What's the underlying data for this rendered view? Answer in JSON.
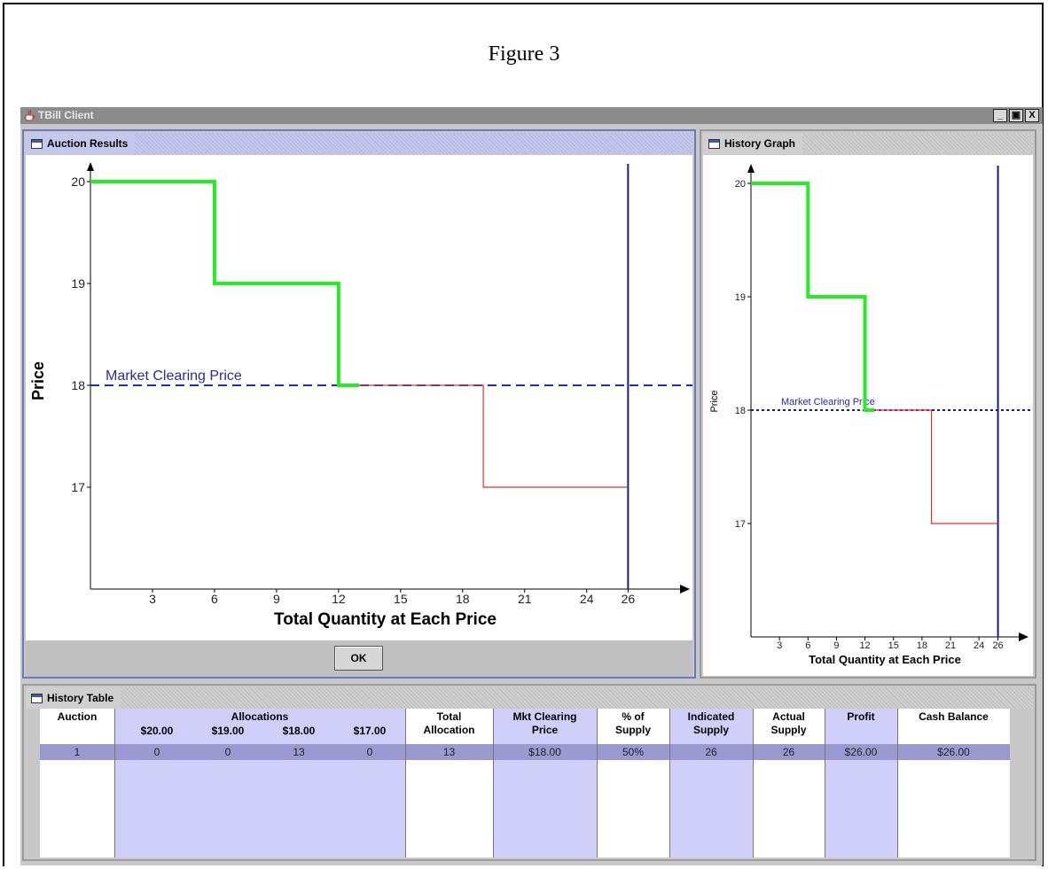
{
  "caption": "Figure 3",
  "app": {
    "title": "TBill Client",
    "buttons": [
      "_",
      "ᴱ",
      "X"
    ],
    "button_icons": [
      "minimize-icon",
      "restore-icon",
      "close-icon"
    ]
  },
  "auction_results": {
    "title": "Auction Results",
    "ok_label": "OK",
    "chart_data": {
      "type": "line",
      "xlabel": "Total Quantity at Each Price",
      "ylabel": "Price",
      "x_ticks": [
        "3",
        "6",
        "9",
        "12",
        "15",
        "18",
        "21",
        "24",
        "26"
      ],
      "y_ticks": [
        "17",
        "18",
        "19",
        "20"
      ],
      "xlim": [
        0,
        28
      ],
      "ylim": [
        16,
        20
      ],
      "annotation": "Market Clearing Price",
      "clearing_price": 18,
      "indicated_supply": 26,
      "series": [
        {
          "color": "#22ee22",
          "points": [
            [
              0,
              20
            ],
            [
              6,
              20
            ],
            [
              6,
              19
            ],
            [
              12,
              19
            ],
            [
              12,
              18
            ],
            [
              13,
              18
            ]
          ]
        },
        {
          "color": "#e03030",
          "points": [
            [
              13,
              18
            ],
            [
              19,
              18
            ],
            [
              19,
              17
            ],
            [
              26,
              17
            ]
          ]
        }
      ]
    }
  },
  "history_graph": {
    "title": "History Graph",
    "chart_data": {
      "type": "line",
      "xlabel": "Total Quantity at Each Price",
      "ylabel": "Price",
      "x_ticks": [
        "3",
        "6",
        "9",
        "12",
        "15",
        "18",
        "21",
        "24",
        "26"
      ],
      "y_ticks": [
        "17",
        "18",
        "19",
        "20"
      ],
      "xlim": [
        0,
        28
      ],
      "ylim": [
        16,
        20
      ],
      "annotation": "Market Clearing Price",
      "clearing_price": 18,
      "indicated_supply": 26,
      "series": [
        {
          "color": "#22ee22",
          "points": [
            [
              0,
              20
            ],
            [
              6,
              20
            ],
            [
              6,
              19
            ],
            [
              12,
              19
            ],
            [
              12,
              18
            ],
            [
              13,
              18
            ]
          ]
        },
        {
          "color": "#e03030",
          "points": [
            [
              13,
              18
            ],
            [
              19,
              18
            ],
            [
              19,
              17
            ],
            [
              26,
              17
            ]
          ]
        }
      ]
    }
  },
  "history_table": {
    "title": "History Table",
    "headers": {
      "auction": "Auction",
      "allocations": "Allocations",
      "alloc_20": "$20.00",
      "alloc_19": "$19.00",
      "alloc_18": "$18.00",
      "alloc_17": "$17.00",
      "total_1": "Total",
      "total_2": "Allocation",
      "mcp_1": "Mkt Clearing",
      "mcp_2": "Price",
      "pct_1": "% of",
      "pct_2": "Supply",
      "ind_1": "Indicated",
      "ind_2": "Supply",
      "act_1": "Actual",
      "act_2": "Supply",
      "profit": "Profit",
      "cash": "Cash Balance"
    },
    "rows": [
      [
        "1",
        "0",
        "0",
        "13",
        "0",
        "13",
        "$18.00",
        "50%",
        "26",
        "26",
        "$26.00",
        "$26.00"
      ]
    ]
  }
}
